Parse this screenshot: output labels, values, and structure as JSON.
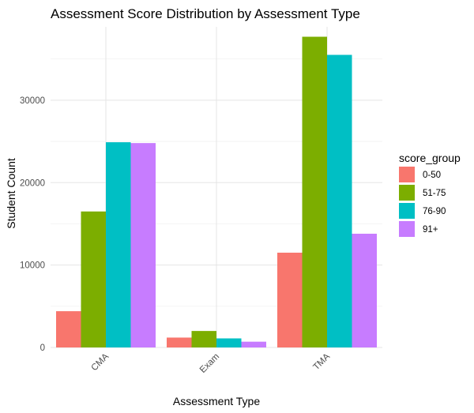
{
  "chart_data": {
    "type": "bar",
    "title": "Assessment Score Distribution by Assessment Type",
    "xlabel": "Assessment Type",
    "ylabel": "Student Count",
    "categories": [
      "CMA",
      "Exam",
      "TMA"
    ],
    "series": [
      {
        "name": "0-50",
        "color": "#F8766D",
        "values": [
          4400,
          1200,
          11500
        ]
      },
      {
        "name": "51-75",
        "color": "#7CAE00",
        "values": [
          16500,
          2000,
          37700
        ]
      },
      {
        "name": "76-90",
        "color": "#00BFC4",
        "values": [
          24900,
          1100,
          35500
        ]
      },
      {
        "name": "91+",
        "color": "#C77CFF",
        "values": [
          24800,
          700,
          13800
        ]
      }
    ],
    "ylim": [
      0,
      38900
    ],
    "yticks": [
      0,
      10000,
      20000,
      30000
    ],
    "ytick_labels": [
      "0",
      "10000",
      "20000",
      "30000"
    ],
    "grid": true,
    "legend": {
      "title": "score_group",
      "position": "right"
    }
  }
}
